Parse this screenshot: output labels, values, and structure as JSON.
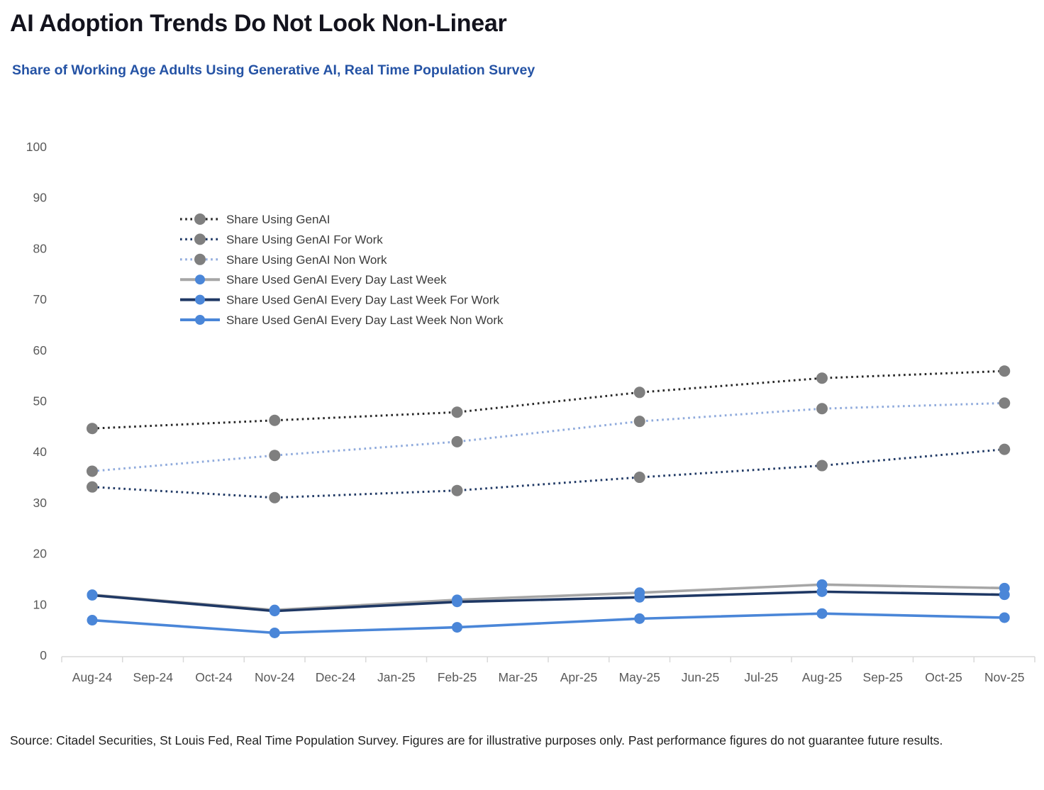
{
  "header": {
    "title": "AI Adoption Trends Do Not Look Non-Linear",
    "subtitle": "Share of Working Age Adults Using Generative AI, Real Time Population Survey"
  },
  "footer": {
    "source": "Source: Citadel Securities, St Louis Fed, Real Time Population Survey. Figures are for illustrative purposes only. Past performance figures do not guarantee future results."
  },
  "colors": {
    "title_dark": "#13131d",
    "subtitle_blue": "#2553a5",
    "navy": "#1f3864",
    "medium_blue": "#4a86d8",
    "light_blue": "#8faadc",
    "gray_line": "#a6a6a6",
    "marker_gray": "#7f7f7f",
    "near_black": "#262626",
    "axis_gray": "#d9d9d9"
  },
  "chart_data": {
    "type": "line",
    "title": "AI Adoption Trends Do Not Look Non-Linear",
    "subtitle": "Share of Working Age Adults Using Generative AI, Real Time Population Survey",
    "xlabel": "",
    "ylabel": "",
    "grid": false,
    "legend_position": "upper-left-inside",
    "y_axis": {
      "min": 0,
      "max": 100,
      "step": 10,
      "ticks": [
        0,
        10,
        20,
        30,
        40,
        50,
        60,
        70,
        80,
        90,
        100
      ]
    },
    "categories": [
      "Aug-24",
      "Sep-24",
      "Oct-24",
      "Nov-24",
      "Dec-24",
      "Jan-25",
      "Feb-25",
      "Mar-25",
      "Apr-25",
      "May-25",
      "Jun-25",
      "Jul-25",
      "Aug-25",
      "Sep-25",
      "Oct-25",
      "Nov-25"
    ],
    "data_month_indices": [
      0,
      3,
      6,
      9,
      12,
      15
    ],
    "data_months": [
      "Aug-24",
      "Nov-24",
      "Feb-25",
      "May-25",
      "Aug-25",
      "Nov-25"
    ],
    "series": [
      {
        "name": "Share Using GenAI",
        "style": "dotted",
        "line_color": "#262626",
        "marker_color": "#7f7f7f",
        "values": [
          44.6,
          46.2,
          47.8,
          51.7,
          54.5,
          55.9
        ]
      },
      {
        "name": "Share Using GenAI For Work",
        "style": "dotted",
        "line_color": "#1f3864",
        "marker_color": "#7f7f7f",
        "values": [
          33.1,
          31.0,
          32.4,
          35.0,
          37.3,
          40.5
        ]
      },
      {
        "name": "Share Using GenAI Non Work",
        "style": "dotted",
        "line_color": "#8faadc",
        "marker_color": "#7f7f7f",
        "values": [
          36.2,
          39.3,
          42.0,
          46.0,
          48.5,
          49.6
        ]
      },
      {
        "name": "Share Used GenAI Every Day Last Week",
        "style": "solid",
        "line_color": "#a6a6a6",
        "marker_color": "#4a86d8",
        "values": [
          11.9,
          8.9,
          10.9,
          12.3,
          13.9,
          13.2
        ]
      },
      {
        "name": "Share Used GenAI Every Day Last Week For Work",
        "style": "solid",
        "line_color": "#1f3864",
        "marker_color": "#4a86d8",
        "values": [
          11.8,
          8.7,
          10.5,
          11.4,
          12.5,
          11.9
        ]
      },
      {
        "name": "Share Used GenAI Every Day Last Week Non Work",
        "style": "solid",
        "line_color": "#4a86d8",
        "marker_color": "#4a86d8",
        "values": [
          6.9,
          4.4,
          5.5,
          7.2,
          8.2,
          7.4
        ]
      }
    ]
  }
}
